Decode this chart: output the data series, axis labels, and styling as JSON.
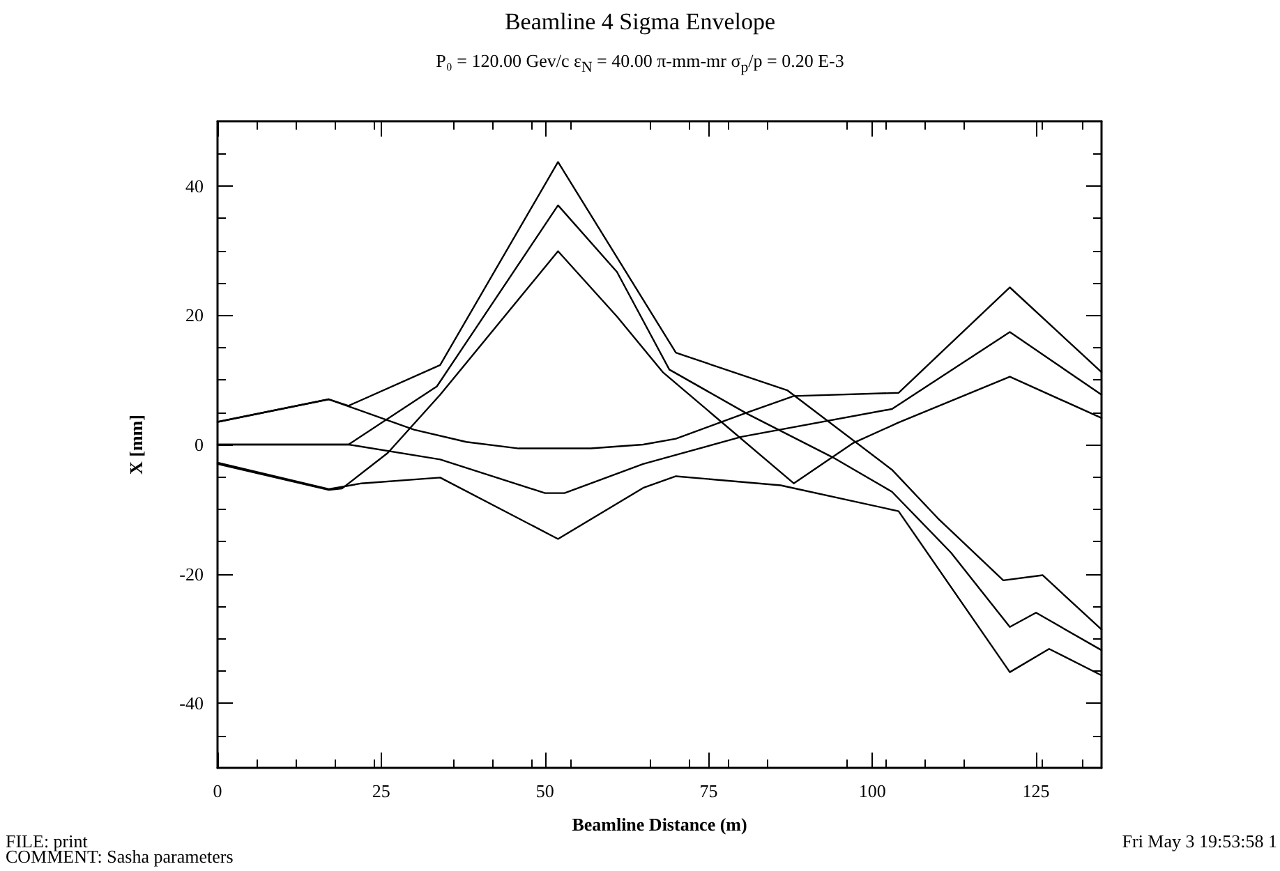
{
  "chart_data": {
    "type": "line",
    "title": "Beamline 4 Sigma Envelope",
    "subtitle": "P₀ = 120.00  Gev/c ε$_{N}$ = 40.00  π-mm-mr σ$_{p}$/p = 0.20 E-3",
    "xlabel": "Beamline Distance (m)",
    "ylabel": "X [mm]",
    "annotations": [
      "FILE:  print",
      "COMMENT: Sasha parameters",
      "Fri May  3 19:53:58 1"
    ],
    "xlim": [
      0,
      135
    ],
    "xticks": [
      0,
      25,
      50,
      75,
      100,
      125
    ],
    "ylim": [
      -50,
      50
    ],
    "yticks": [
      -40,
      -20,
      0,
      20,
      40
    ],
    "grid": false,
    "marker": "none",
    "line_style": "solid",
    "series": [
      {
        "color": "#000000",
        "x": [
          0,
          17,
          20,
          34,
          52,
          70,
          87,
          103,
          110,
          120,
          126,
          135
        ],
        "values": [
          3.5,
          7,
          6,
          12.3,
          43.7,
          14.2,
          8.4,
          -3.9,
          -11.4,
          -21,
          -20.2,
          -28.6
        ]
      },
      {
        "color": "#000000",
        "x": [
          0,
          20,
          33.5,
          52,
          61,
          69,
          81,
          94,
          103,
          112,
          121,
          125,
          135
        ],
        "values": [
          0,
          0,
          9,
          37,
          26.7,
          11.6,
          4.7,
          -2,
          -7.3,
          -16.7,
          -28.2,
          -26,
          -31.8
        ]
      },
      {
        "color": "#000000",
        "x": [
          0,
          17,
          19,
          26,
          34,
          52,
          61,
          68,
          88,
          97,
          104,
          121,
          135
        ],
        "values": [
          -3,
          -7,
          -6.8,
          -1.3,
          7.7,
          29.9,
          19.8,
          11.2,
          -6,
          0.2,
          3.4,
          10.5,
          4.1
        ]
      },
      {
        "color": "#000000",
        "x": [
          0,
          17,
          30,
          38,
          46,
          57,
          65,
          70,
          81,
          88,
          104,
          121,
          135
        ],
        "values": [
          3.5,
          7,
          2.3,
          0.4,
          -0.6,
          -0.6,
          0,
          0.9,
          5,
          7.5,
          8,
          24.3,
          11.2
        ]
      },
      {
        "color": "#000000",
        "x": [
          0,
          20,
          34,
          50,
          53,
          65,
          70,
          80,
          103,
          121,
          135
        ],
        "values": [
          0,
          0,
          -2.3,
          -7.5,
          -7.5,
          -3,
          -1.6,
          1.2,
          5.5,
          17.4,
          7.7
        ]
      },
      {
        "color": "#000000",
        "x": [
          0,
          17,
          22,
          34,
          52,
          65,
          70,
          86,
          104,
          121,
          127,
          135
        ],
        "values": [
          -2.8,
          -6.9,
          -6,
          -5.1,
          -14.6,
          -6.7,
          -4.9,
          -6.3,
          -10.3,
          -35.2,
          -31.6,
          -35.7
        ]
      }
    ]
  }
}
